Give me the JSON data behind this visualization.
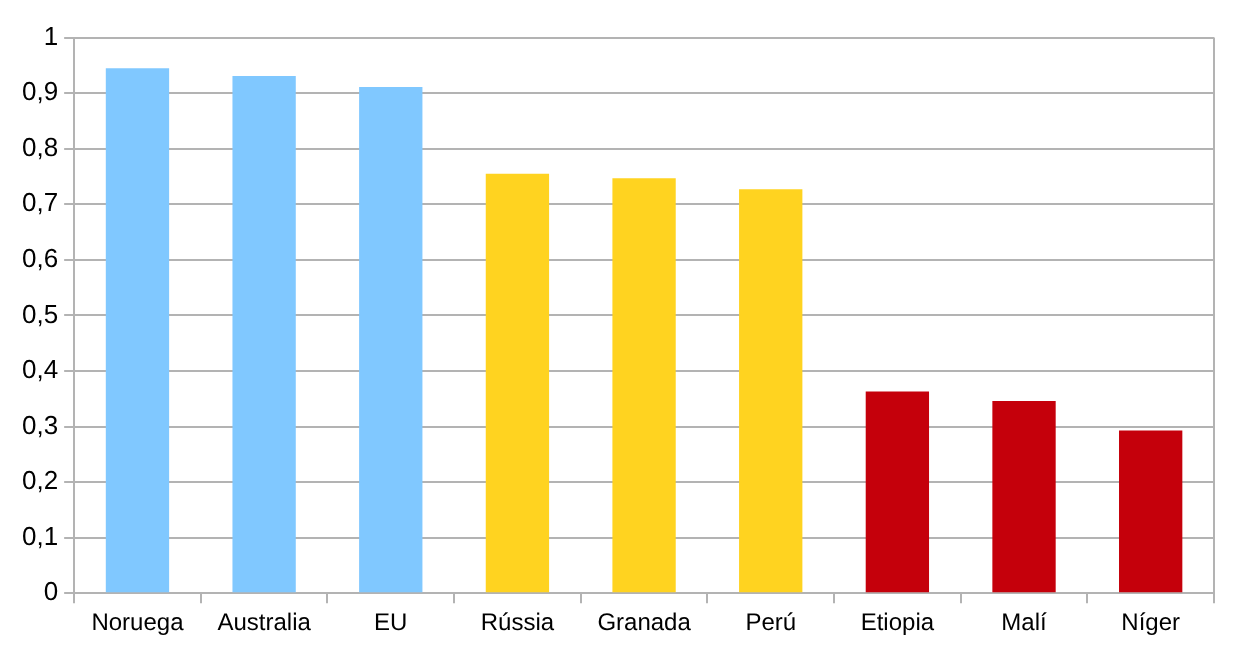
{
  "chart_data": {
    "type": "bar",
    "categories": [
      "Noruega",
      "Australia",
      "EU",
      "Rússia",
      "Granada",
      "Perú",
      "Etiopia",
      "Malí",
      "Níger"
    ],
    "values": [
      0.945,
      0.931,
      0.911,
      0.755,
      0.747,
      0.727,
      0.363,
      0.346,
      0.293
    ],
    "colors": [
      "#80c8ff",
      "#80c8ff",
      "#80c8ff",
      "#ffd320",
      "#ffd320",
      "#ffd320",
      "#c5000b",
      "#c5000b",
      "#c5000b"
    ],
    "ylim": [
      0,
      1
    ],
    "yticks": [
      0,
      {
        "value": 0.1,
        "label": "0,1"
      },
      {
        "value": 0.2,
        "label": "0,2"
      },
      {
        "value": 0.3,
        "label": "0,3"
      },
      {
        "value": 0.4,
        "label": "0,4"
      },
      {
        "value": 0.5,
        "label": "0,5"
      },
      {
        "value": 0.6,
        "label": "0,6"
      },
      {
        "value": 0.7,
        "label": "0,7"
      },
      {
        "value": 0.8,
        "label": "0,8"
      },
      {
        "value": 0.9,
        "label": "0,9"
      },
      1
    ],
    "grid": "y",
    "legend": false
  }
}
